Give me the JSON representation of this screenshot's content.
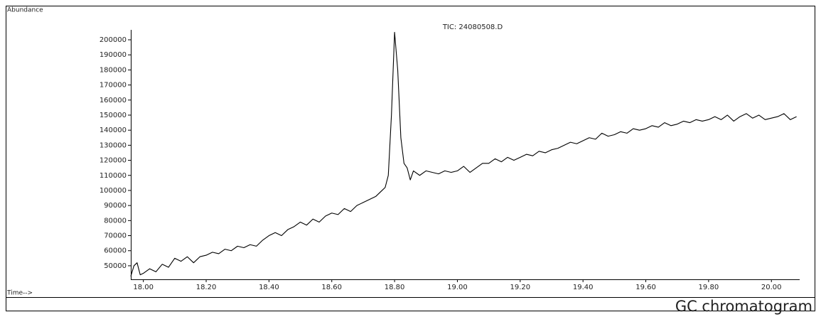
{
  "chart_data": {
    "type": "line",
    "title": "TIC: 24080508.D",
    "y_label": "Abundance",
    "x_label": "Time-->",
    "caption": "GC chromatogram",
    "color": "#000000",
    "xlim": [
      17.96,
      20.09
    ],
    "ylim": [
      41000,
      206600
    ],
    "xticks": [
      {
        "value": 18,
        "label": "18.00"
      },
      {
        "value": 18.2,
        "label": "18.20"
      },
      {
        "value": 18.4,
        "label": "18.40"
      },
      {
        "value": 18.6,
        "label": "18.60"
      },
      {
        "value": 18.8,
        "label": "18.80"
      },
      {
        "value": 19,
        "label": "19.00"
      },
      {
        "value": 19.2,
        "label": "19.20"
      },
      {
        "value": 19.4,
        "label": "19.40"
      },
      {
        "value": 19.6,
        "label": "19.60"
      },
      {
        "value": 19.8,
        "label": "19.80"
      },
      {
        "value": 20,
        "label": "20.00"
      }
    ],
    "yticks": [
      50000,
      60000,
      70000,
      80000,
      90000,
      100000,
      110000,
      120000,
      130000,
      140000,
      150000,
      160000,
      170000,
      180000,
      190000,
      200000
    ],
    "x": [
      17.96,
      17.97,
      17.98,
      17.99,
      18.0,
      18.02,
      18.04,
      18.06,
      18.08,
      18.1,
      18.12,
      18.14,
      18.16,
      18.18,
      18.2,
      18.22,
      18.24,
      18.26,
      18.28,
      18.3,
      18.32,
      18.34,
      18.36,
      18.38,
      18.4,
      18.42,
      18.44,
      18.46,
      18.48,
      18.5,
      18.52,
      18.54,
      18.56,
      18.58,
      18.6,
      18.62,
      18.64,
      18.66,
      18.68,
      18.7,
      18.72,
      18.74,
      18.76,
      18.77,
      18.78,
      18.79,
      18.8,
      18.81,
      18.82,
      18.83,
      18.84,
      18.85,
      18.86,
      18.88,
      18.9,
      18.92,
      18.94,
      18.96,
      18.98,
      19.0,
      19.02,
      19.04,
      19.06,
      19.08,
      19.1,
      19.12,
      19.14,
      19.16,
      19.18,
      19.2,
      19.22,
      19.24,
      19.26,
      19.28,
      19.3,
      19.32,
      19.34,
      19.36,
      19.38,
      19.4,
      19.42,
      19.44,
      19.46,
      19.48,
      19.5,
      19.52,
      19.54,
      19.56,
      19.58,
      19.6,
      19.62,
      19.64,
      19.66,
      19.68,
      19.7,
      19.72,
      19.74,
      19.76,
      19.78,
      19.8,
      19.82,
      19.84,
      19.86,
      19.88,
      19.9,
      19.92,
      19.94,
      19.96,
      19.98,
      20.0,
      20.02,
      20.04,
      20.06,
      20.08
    ],
    "values": [
      43000,
      50000,
      52000,
      44000,
      45000,
      48000,
      46000,
      51000,
      49000,
      55000,
      53000,
      56000,
      52000,
      56000,
      57000,
      59000,
      58000,
      61000,
      60000,
      63000,
      62000,
      64000,
      63000,
      67000,
      70000,
      72000,
      70000,
      74000,
      76000,
      79000,
      77000,
      81000,
      79000,
      83000,
      85000,
      84000,
      88000,
      86000,
      90000,
      92000,
      94000,
      96000,
      100000,
      102000,
      110000,
      150000,
      205000,
      180000,
      135000,
      118000,
      115000,
      107000,
      113000,
      110000,
      113000,
      112000,
      111000,
      113000,
      112000,
      113000,
      116000,
      112000,
      115000,
      118000,
      118000,
      121000,
      119000,
      122000,
      120000,
      122000,
      124000,
      123000,
      126000,
      125000,
      127000,
      128000,
      130000,
      132000,
      131000,
      133000,
      135000,
      134000,
      138000,
      136000,
      137000,
      139000,
      138000,
      141000,
      140000,
      141000,
      143000,
      142000,
      145000,
      143000,
      144000,
      146000,
      145000,
      147000,
      146000,
      147000,
      149000,
      147000,
      150000,
      146000,
      149000,
      151000,
      148000,
      150000,
      147000,
      148000,
      149000,
      151000,
      147000,
      149000
    ]
  }
}
